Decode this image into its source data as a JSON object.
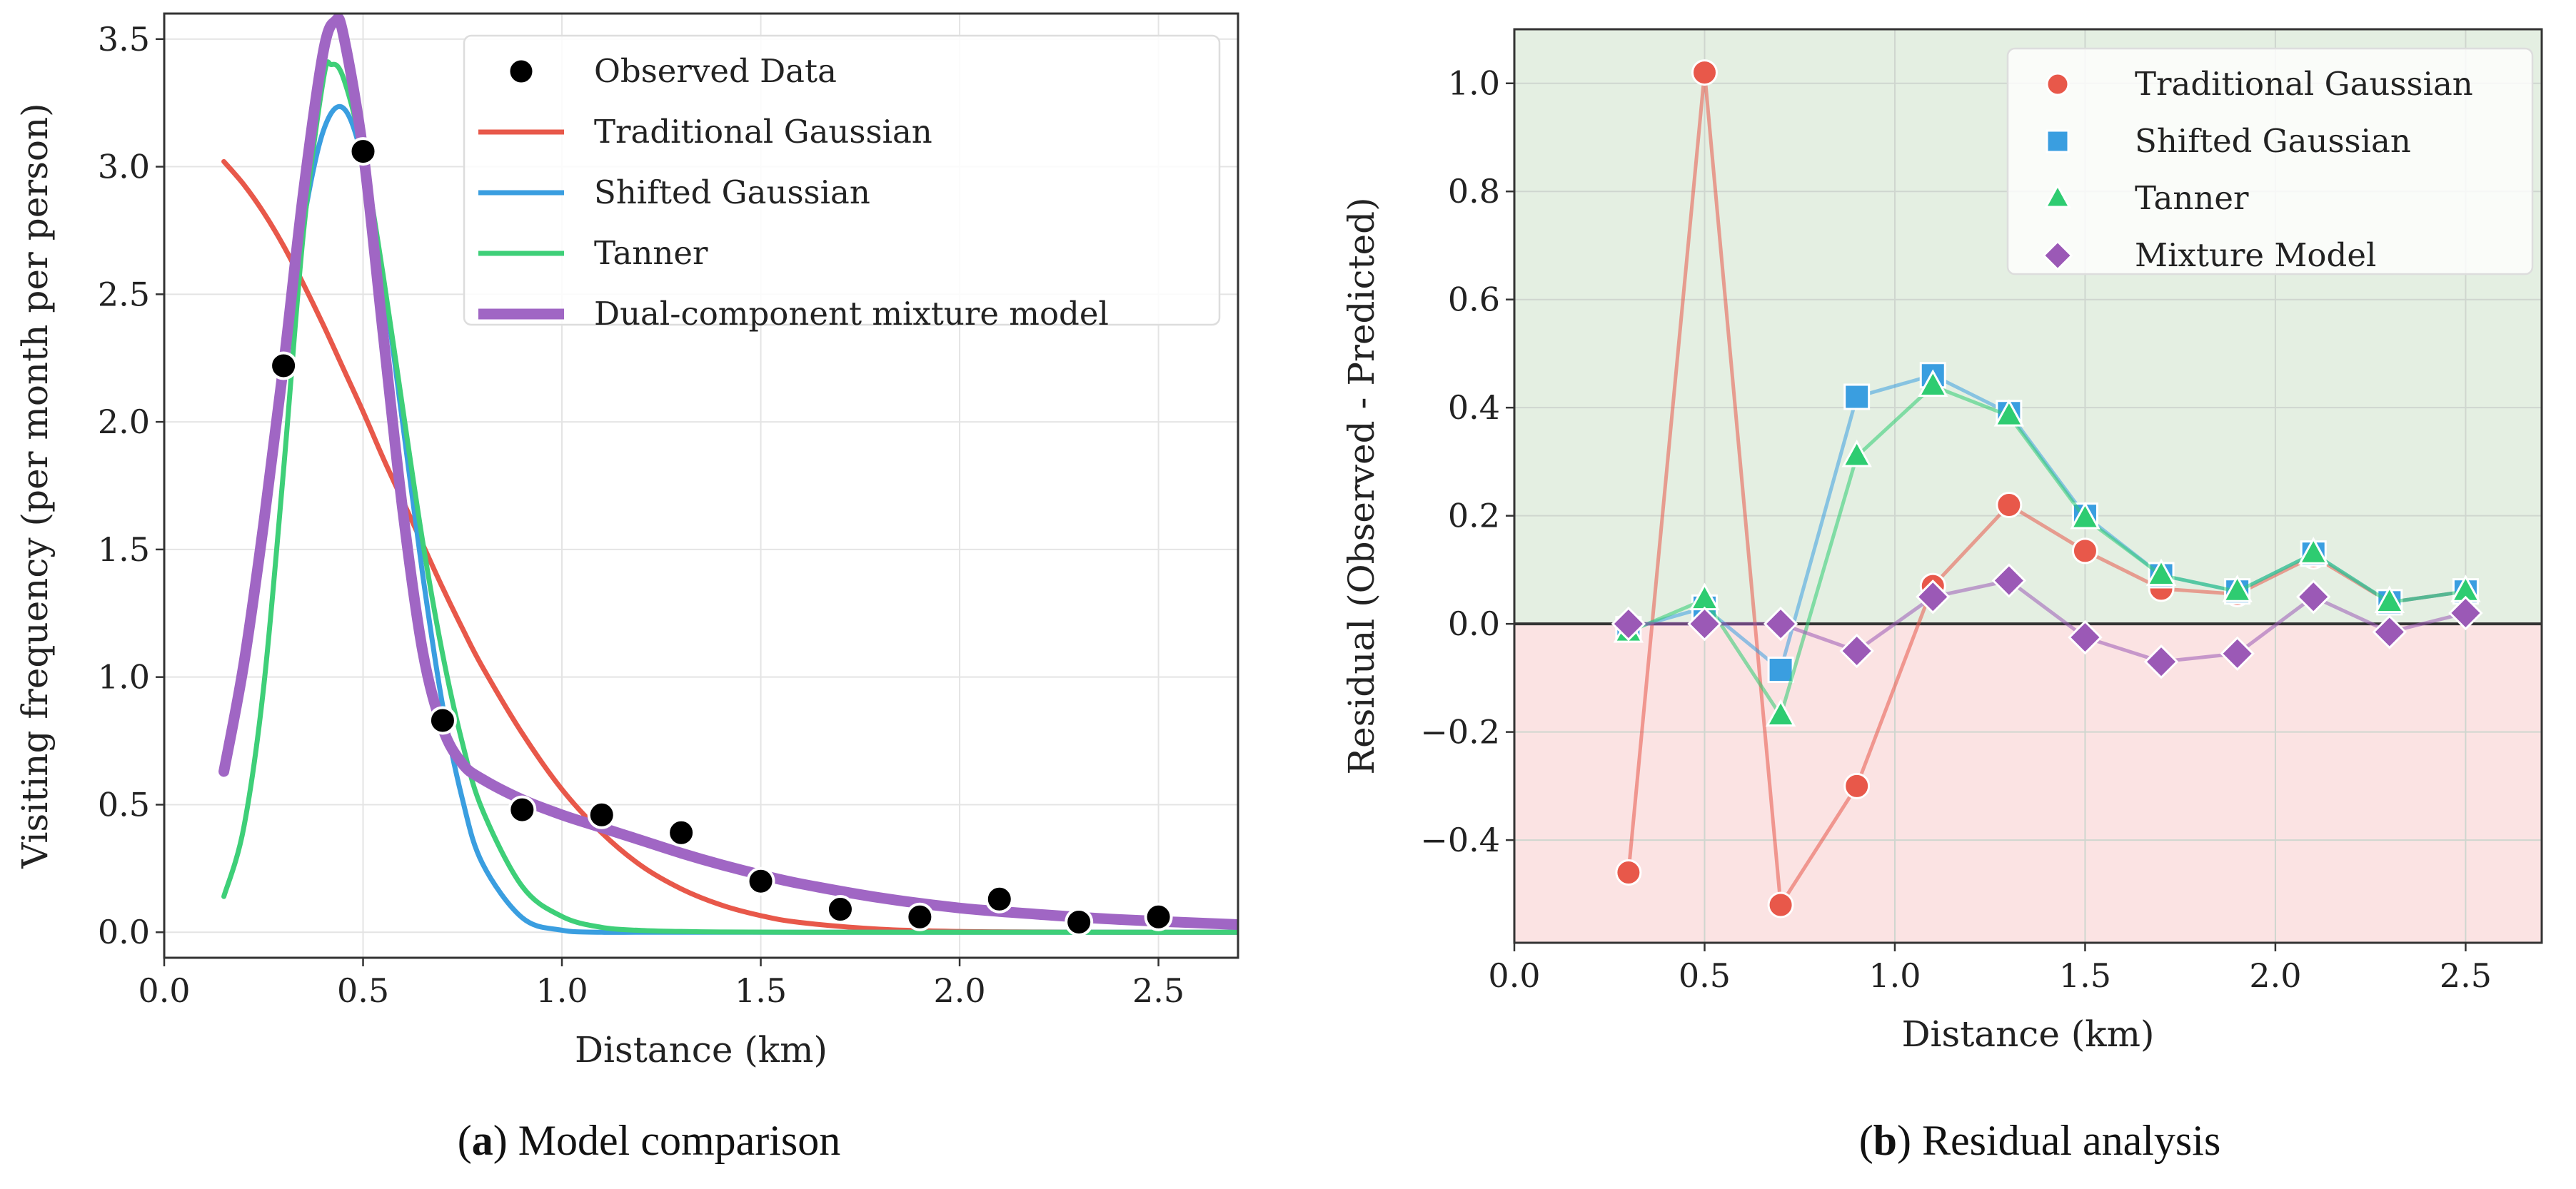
{
  "chart_data": [
    {
      "panel": "a",
      "type": "line",
      "caption": {
        "open": "(",
        "label": "a",
        "close": ")",
        "text": "Model comparison"
      },
      "xlabel": "Distance (km)",
      "ylabel": "Visiting frequency (per month per person)",
      "xlim": [
        0,
        2.7
      ],
      "ylim": [
        -0.1,
        3.6
      ],
      "x_ticks": [
        0,
        0.5,
        1.0,
        1.5,
        2.0,
        2.5
      ],
      "x_tick_labels": [
        "0.0",
        "0.5",
        "1.0",
        "1.5",
        "2.0",
        "2.5"
      ],
      "y_ticks": [
        0,
        0.5,
        1.0,
        1.5,
        2.0,
        2.5,
        3.0,
        3.5
      ],
      "y_tick_labels": [
        "0.0",
        "0.5",
        "1.0",
        "1.5",
        "2.0",
        "2.5",
        "3.0",
        "3.5"
      ],
      "grid": true,
      "legend_position": "top-right",
      "observed": {
        "name": "Observed Data",
        "color": "#000000",
        "x": [
          0.3,
          0.5,
          0.7,
          0.9,
          1.1,
          1.3,
          1.5,
          1.7,
          1.9,
          2.1,
          2.3,
          2.5
        ],
        "y": [
          2.22,
          3.06,
          0.83,
          0.48,
          0.46,
          0.39,
          0.2,
          0.09,
          0.06,
          0.13,
          0.04,
          0.06
        ]
      },
      "series": [
        {
          "name": "Traditional Gaussian",
          "color": "#e8584a",
          "x": [
            0.15,
            0.2,
            0.25,
            0.3,
            0.35,
            0.4,
            0.45,
            0.5,
            0.55,
            0.6,
            0.65,
            0.7,
            0.75,
            0.8,
            0.9,
            1.0,
            1.1,
            1.2,
            1.3,
            1.4,
            1.5,
            1.6,
            1.8,
            2.0,
            2.2,
            2.4,
            2.7
          ],
          "y": [
            3.02,
            2.93,
            2.82,
            2.69,
            2.54,
            2.38,
            2.21,
            2.04,
            1.86,
            1.69,
            1.52,
            1.35,
            1.19,
            1.04,
            0.78,
            0.56,
            0.39,
            0.26,
            0.17,
            0.107,
            0.065,
            0.038,
            0.012,
            0.003,
            0.001,
            0,
            0
          ]
        },
        {
          "name": "Shifted Gaussian",
          "color": "#3a9ee0",
          "x": [
            0.15,
            0.2,
            0.25,
            0.3,
            0.35,
            0.4,
            0.45,
            0.5,
            0.55,
            0.6,
            0.65,
            0.7,
            0.75,
            0.8,
            0.9,
            1.0,
            1.1,
            1.2,
            1.4,
            1.6,
            2.0,
            2.7
          ],
          "y": [
            0.65,
            1.08,
            1.63,
            2.23,
            2.78,
            3.14,
            3.23,
            3.02,
            2.57,
            1.99,
            1.4,
            0.89,
            0.52,
            0.27,
            0.057,
            0.008,
            0,
            0,
            0,
            0,
            0,
            0
          ]
        },
        {
          "name": "Tanner",
          "color": "#3ecf78",
          "x": [
            0.15,
            0.2,
            0.25,
            0.3,
            0.35,
            0.4,
            0.42,
            0.45,
            0.5,
            0.55,
            0.6,
            0.65,
            0.7,
            0.75,
            0.8,
            0.9,
            1.0,
            1.1,
            1.2,
            1.3,
            1.4,
            1.6,
            2.0,
            2.7
          ],
          "y": [
            0.14,
            0.41,
            0.96,
            1.81,
            2.74,
            3.34,
            3.4,
            3.35,
            3.05,
            2.58,
            2.05,
            1.53,
            1.09,
            0.74,
            0.48,
            0.18,
            0.062,
            0.019,
            0.007,
            0.003,
            0.001,
            0,
            0,
            0
          ]
        },
        {
          "name": "Dual-component mixture model",
          "color": "#a066c4",
          "x": [
            0.15,
            0.2,
            0.25,
            0.3,
            0.35,
            0.4,
            0.43,
            0.45,
            0.5,
            0.55,
            0.6,
            0.65,
            0.7,
            0.75,
            0.8,
            0.9,
            1.0,
            1.1,
            1.2,
            1.3,
            1.4,
            1.5,
            1.6,
            1.8,
            2.0,
            2.2,
            2.4,
            2.7
          ],
          "y": [
            0.63,
            1.05,
            1.6,
            2.22,
            2.9,
            3.45,
            3.57,
            3.52,
            3.06,
            2.35,
            1.65,
            1.1,
            0.8,
            0.66,
            0.6,
            0.52,
            0.46,
            0.41,
            0.36,
            0.31,
            0.265,
            0.225,
            0.19,
            0.135,
            0.095,
            0.07,
            0.05,
            0.03
          ]
        }
      ]
    },
    {
      "panel": "b",
      "type": "line",
      "caption": {
        "open": "(",
        "label": "b",
        "close": ")",
        "text": "Residual analysis"
      },
      "xlabel": "Distance (km)",
      "ylabel": "Residual (Observed - Predicted)",
      "xlim": [
        0,
        2.7
      ],
      "ylim": [
        -0.59,
        1.1
      ],
      "x_ticks": [
        0,
        0.5,
        1.0,
        1.5,
        2.0,
        2.5
      ],
      "x_tick_labels": [
        "0.0",
        "0.5",
        "1.0",
        "1.5",
        "2.0",
        "2.5"
      ],
      "y_ticks": [
        -0.4,
        -0.2,
        0,
        0.2,
        0.4,
        0.6,
        0.8,
        1.0
      ],
      "y_tick_labels": [
        "−0.4",
        "−0.2",
        "0.0",
        "0.2",
        "0.4",
        "0.6",
        "0.8",
        "1.0"
      ],
      "grid": true,
      "legend_position": "top-right",
      "positive_region_color": "#e4efe2",
      "negative_region_color": "#fbe3e3",
      "zero_line_color": "#333333",
      "x": [
        0.3,
        0.5,
        0.7,
        0.9,
        1.1,
        1.3,
        1.5,
        1.7,
        1.9,
        2.1,
        2.3,
        2.5
      ],
      "series": [
        {
          "name": "Traditional Gaussian",
          "marker": "circle",
          "color": "#e8584a",
          "y": [
            -0.46,
            1.02,
            -0.52,
            -0.3,
            0.07,
            0.22,
            0.135,
            0.065,
            0.055,
            0.125,
            0.04,
            0.06
          ]
        },
        {
          "name": "Shifted Gaussian",
          "marker": "square",
          "color": "#3a9ee0",
          "y": [
            -0.01,
            0.03,
            -0.085,
            0.42,
            0.46,
            0.39,
            0.2,
            0.09,
            0.06,
            0.13,
            0.04,
            0.06
          ]
        },
        {
          "name": "Tanner",
          "marker": "triangle",
          "color": "#2ecc71",
          "y": [
            -0.015,
            0.045,
            -0.17,
            0.31,
            0.44,
            0.385,
            0.195,
            0.09,
            0.06,
            0.13,
            0.04,
            0.06
          ]
        },
        {
          "name": "Mixture Model",
          "marker": "diamond",
          "color": "#9b59b6",
          "y": [
            0.0,
            0.0,
            0.0,
            -0.05,
            0.05,
            0.08,
            -0.025,
            -0.07,
            -0.055,
            0.05,
            -0.015,
            0.02
          ]
        }
      ]
    }
  ]
}
